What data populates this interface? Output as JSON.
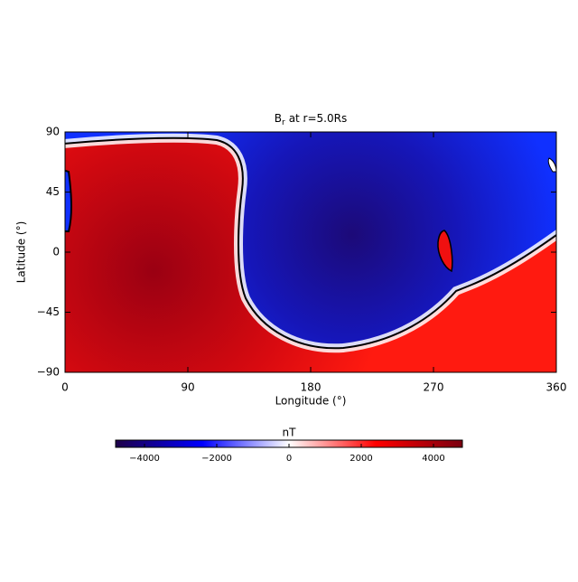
{
  "chart_data": {
    "type": "heatmap",
    "title": "B",
    "title_subscript": "r",
    "title_suffix": "at r=5.0Rs",
    "xlabel": "Longitude (°)",
    "ylabel": "Latitude (°)",
    "xlim": [
      0,
      360
    ],
    "xticks": [
      0,
      90,
      180,
      270,
      360
    ],
    "ylim": [
      -90,
      90
    ],
    "yticks": [
      {
        "value": -90,
        "label": "−90"
      },
      {
        "value": -45,
        "label": "−45"
      },
      0,
      45,
      90
    ],
    "colorbar": {
      "label": "nT",
      "clim": [
        -4800,
        4800
      ],
      "ticks": [
        {
          "value": -4000,
          "label": "−4000"
        },
        {
          "value": -2000,
          "label": "−2000"
        },
        0,
        2000,
        4000
      ],
      "colors": [
        "#1e0048",
        "#0000ff",
        "#ffffff",
        "#ff0000",
        "#7a0010"
      ]
    }
  }
}
